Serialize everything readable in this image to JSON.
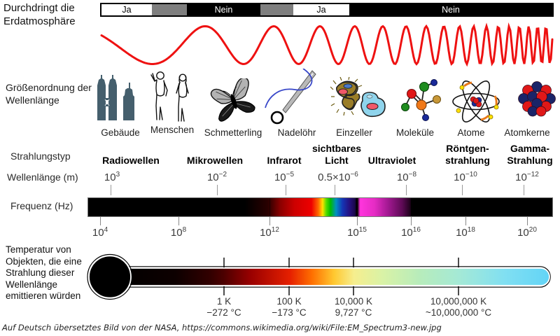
{
  "atmosphere": {
    "label": "Durchdringt die Erdatmosphäre",
    "segments": [
      "Ja",
      "",
      "Nein",
      "",
      "Ja",
      "Nein"
    ]
  },
  "scale": {
    "label": "Größenordnung der Wellenlänge",
    "items": [
      "Gebäude",
      "Menschen",
      "Schmetterling",
      "Nadelöhr",
      "Einzeller",
      "Moleküle",
      "Atome",
      "Atomkerne"
    ]
  },
  "radiation": {
    "row_label": "Strahlungstyp",
    "types": [
      {
        "line1": "Radiowellen",
        "line2": ""
      },
      {
        "line1": "Mikrowellen",
        "line2": ""
      },
      {
        "line1": "Infrarot",
        "line2": ""
      },
      {
        "line1": "sichtbares",
        "line2": "Licht"
      },
      {
        "line1": "Ultraviolet",
        "line2": ""
      },
      {
        "line1": "Röntgen-",
        "line2": "strahlung"
      },
      {
        "line1": "Gamma-",
        "line2": "Strahlung"
      }
    ]
  },
  "wavelength": {
    "row_label": "Wellenlänge (m)",
    "values": [
      {
        "mantissa": "10",
        "exp": "3"
      },
      {
        "mantissa": "10",
        "exp": "−2"
      },
      {
        "mantissa": "10",
        "exp": "−5"
      },
      {
        "mantissa": "0.5×10",
        "exp": "−6"
      },
      {
        "mantissa": "10",
        "exp": "−8"
      },
      {
        "mantissa": "10",
        "exp": "−10"
      },
      {
        "mantissa": "10",
        "exp": "−12"
      }
    ]
  },
  "frequency": {
    "row_label": "Frequenz (Hz)",
    "ticks": [
      {
        "mantissa": "10",
        "exp": "4"
      },
      {
        "mantissa": "10",
        "exp": "8"
      },
      {
        "mantissa": "10",
        "exp": "12"
      },
      {
        "mantissa": "10",
        "exp": "15"
      },
      {
        "mantissa": "10",
        "exp": "16"
      },
      {
        "mantissa": "10",
        "exp": "18"
      },
      {
        "mantissa": "10",
        "exp": "20"
      }
    ]
  },
  "temperature": {
    "label": "Temperatur von Objekten, die eine Strahlung dieser Wellenlänge emittieren würden",
    "ticks": [
      {
        "kelvin": "1 K",
        "celsius": "−272 °C"
      },
      {
        "kelvin": "100 K",
        "celsius": "−173 °C"
      },
      {
        "kelvin": "10,000 K",
        "celsius": "9,727 °C"
      },
      {
        "kelvin": "10,000,000 K",
        "celsius": "~10,000,000 °C"
      }
    ]
  },
  "attribution": "Auf Deutsch übersetztes Bild von der NASA, https://commons.wikimedia.org/wiki/File:EM_Spectrum3-new.jpg",
  "colors": {
    "wave": "#ee1111",
    "bar_gray": "#7f7f7f"
  }
}
